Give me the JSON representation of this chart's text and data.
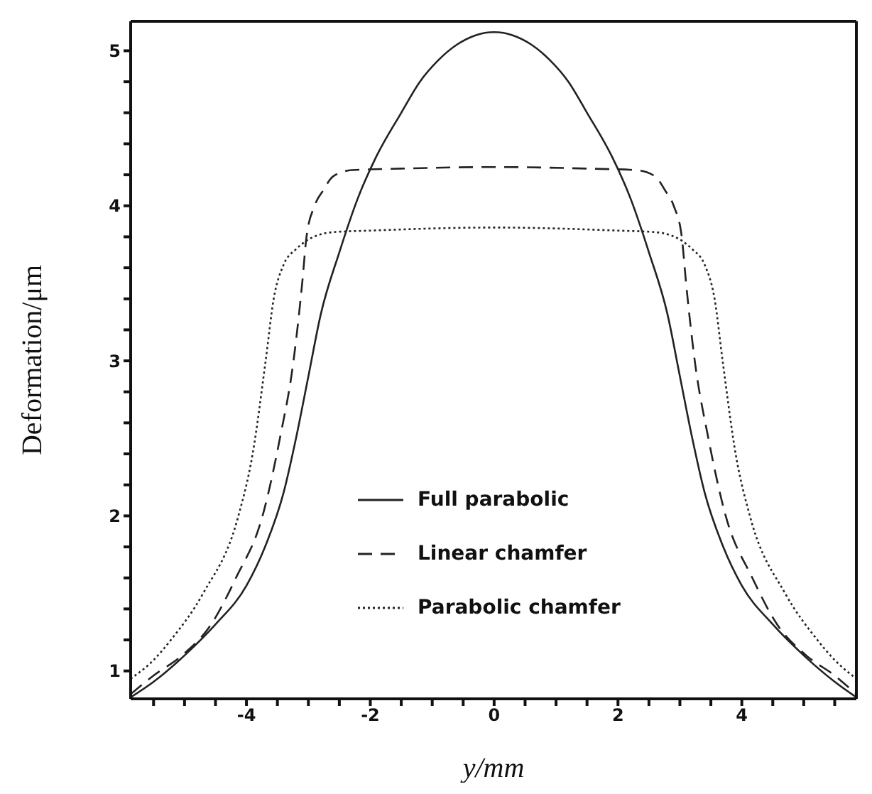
{
  "chart_data": {
    "type": "line",
    "xlabel": "y/mm",
    "ylabel": "Deformation/μm",
    "xlim": [
      -5.87,
      5.85
    ],
    "ylim": [
      0.82,
      5.19
    ],
    "xticks": [
      {
        "value": -5.5,
        "label": null
      },
      {
        "value": -5,
        "label": null
      },
      {
        "value": -4.5,
        "label": null
      },
      -4,
      {
        "value": -3.5,
        "label": null
      },
      {
        "value": -3,
        "label": null
      },
      {
        "value": -2.5,
        "label": null
      },
      -2,
      {
        "value": -1.5,
        "label": null
      },
      {
        "value": -1,
        "label": null
      },
      {
        "value": -0.5,
        "label": null
      },
      0,
      {
        "value": 0.5,
        "label": null
      },
      {
        "value": 1,
        "label": null
      },
      {
        "value": 1.5,
        "label": null
      },
      2,
      {
        "value": 2.5,
        "label": null
      },
      {
        "value": 3,
        "label": null
      },
      {
        "value": 3.5,
        "label": null
      },
      4,
      {
        "value": 4.5,
        "label": null
      },
      {
        "value": 5,
        "label": null
      },
      {
        "value": 5.5,
        "label": null
      }
    ],
    "yticks": [
      1,
      {
        "value": 1.2,
        "label": null
      },
      {
        "value": 1.4,
        "label": null
      },
      {
        "value": 1.6,
        "label": null
      },
      {
        "value": 1.8,
        "label": null
      },
      2,
      {
        "value": 2.2,
        "label": null
      },
      {
        "value": 2.4,
        "label": null
      },
      {
        "value": 2.6,
        "label": null
      },
      {
        "value": 2.8,
        "label": null
      },
      3,
      {
        "value": 3.2,
        "label": null
      },
      {
        "value": 3.4,
        "label": null
      },
      {
        "value": 3.6,
        "label": null
      },
      {
        "value": 3.8,
        "label": null
      },
      4,
      {
        "value": 4.2,
        "label": null
      },
      {
        "value": 4.4,
        "label": null
      },
      {
        "value": 4.6,
        "label": null
      },
      {
        "value": 4.8,
        "label": null
      },
      5
    ],
    "legend": "bottom",
    "marker": "none",
    "series": [
      {
        "name": "Full parabolic",
        "color": "#222222",
        "line_style": "solid",
        "x": [
          -5.87,
          -5.5,
          -5,
          -4.5,
          -4,
          -3.7,
          -3.4,
          -3.2,
          -3,
          -2.8,
          -2.5,
          -2.2,
          -1.9,
          -1.5,
          -1.2,
          -0.9,
          -0.6,
          -0.3,
          0,
          0.3,
          0.6,
          0.9,
          1.2,
          1.5,
          1.9,
          2.2,
          2.5,
          2.8,
          3,
          3.2,
          3.4,
          3.7,
          4,
          4.5,
          5,
          5.5,
          5.85
        ],
        "values": [
          0.83,
          0.93,
          1.1,
          1.3,
          1.55,
          1.8,
          2.15,
          2.5,
          2.9,
          3.3,
          3.7,
          4.05,
          4.32,
          4.6,
          4.8,
          4.94,
          5.04,
          5.1,
          5.12,
          5.1,
          5.04,
          4.94,
          4.8,
          4.6,
          4.32,
          4.05,
          3.7,
          3.3,
          2.9,
          2.5,
          2.15,
          1.8,
          1.55,
          1.3,
          1.1,
          0.93,
          0.83
        ]
      },
      {
        "name": "Linear chamfer",
        "color": "#222222",
        "line_style": "dashed",
        "x": [
          -5.87,
          -5.5,
          -5.04,
          -4.57,
          -4.17,
          -3.74,
          -3.46,
          -3.24,
          -3.1,
          -3.03,
          -2.9,
          -2.76,
          -2.6,
          -2.3,
          -1.5,
          0,
          1.5,
          2.3,
          2.6,
          2.76,
          2.9,
          3.03,
          3.1,
          3.24,
          3.46,
          3.74,
          4.17,
          4.57,
          5.04,
          5.5,
          5.85
        ],
        "values": [
          0.85,
          0.97,
          1.1,
          1.3,
          1.6,
          2,
          2.5,
          3,
          3.5,
          3.8,
          4.0,
          4.1,
          4.19,
          4.23,
          4.24,
          4.25,
          4.24,
          4.23,
          4.19,
          4.1,
          4.0,
          3.8,
          3.5,
          3,
          2.5,
          2,
          1.6,
          1.3,
          1.1,
          0.97,
          0.85
        ]
      },
      {
        "name": "Parabolic chamfer",
        "color": "#222222",
        "line_style": "dotted",
        "x": [
          -5.87,
          -5.5,
          -5.22,
          -4.7,
          -4.13,
          -3.9,
          -3.69,
          -3.56,
          -3.4,
          -3.2,
          -3.05,
          -2.85,
          -2.6,
          -2,
          0,
          2,
          2.6,
          2.85,
          3.05,
          3.2,
          3.4,
          3.56,
          3.69,
          3.9,
          4.13,
          4.7,
          5.22,
          5.5,
          5.85
        ],
        "values": [
          0.95,
          1.07,
          1.2,
          1.5,
          2,
          2.4,
          3,
          3.4,
          3.62,
          3.72,
          3.77,
          3.81,
          3.83,
          3.84,
          3.86,
          3.84,
          3.83,
          3.81,
          3.77,
          3.72,
          3.62,
          3.4,
          3,
          2.4,
          2,
          1.5,
          1.2,
          1.07,
          0.95
        ]
      }
    ]
  }
}
